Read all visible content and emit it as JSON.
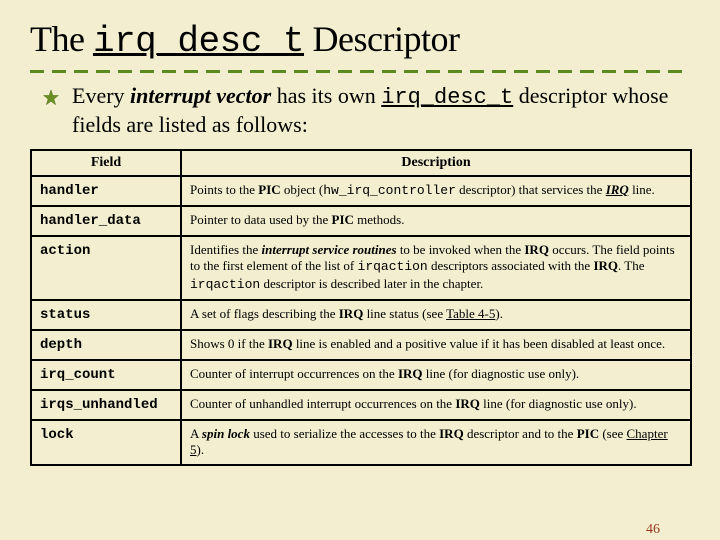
{
  "title_prefix": "The ",
  "title_code": "irq_desc_t",
  "title_suffix": " Descriptor",
  "intro_html": "Every <b><i>interrupt vector</i></b> has its own <span class=\"mono\">irq_desc_t</span> descriptor whose fields are listed as follows:",
  "columns": [
    "Field",
    "Description"
  ],
  "rows": [
    {
      "field": "handler",
      "desc": "Points to the <b>PIC</b> object (<span class=\"mono\">hw_irq_controller</span> descriptor) that services the <b><i class=\"ul\">IRQ</i></b> line."
    },
    {
      "field": "handler_data",
      "desc": "Pointer to data used by the <b>PIC</b> methods."
    },
    {
      "field": "action",
      "desc": "Identifies the <b><i>interrupt service routines</i></b> to be invoked when the <b>IRQ</b> occurs. The field points to the first element of the list of <span class=\"mono\">irqaction</span> descriptors associated with the <b>IRQ</b>. The <span class=\"mono\">irqaction</span> descriptor is described later in the chapter."
    },
    {
      "field": "status",
      "desc": "A set of flags describing the <b>IRQ</b> line status (see <span class=\"ul\">Table 4-5</span>)."
    },
    {
      "field": "depth",
      "desc": "Shows 0 if the <b>IRQ</b> line is enabled and a positive value if it has been disabled at least once."
    },
    {
      "field": "irq_count",
      "desc": "Counter of interrupt occurrences on the <b>IRQ</b> line (for diagnostic use only)."
    },
    {
      "field": "irqs_unhandled",
      "desc": "Counter of unhandled interrupt occurrences on the <b>IRQ</b> line (for diagnostic use only)."
    },
    {
      "field": "lock",
      "desc": "A <b><i>spin lock</i></b> used to serialize the accesses to the <b>IRQ</b> descriptor and to the <b>PIC</b> (see <span class=\"ul\">Chapter 5</span>)."
    }
  ],
  "page_number": "46",
  "colors": {
    "background": "#f2eecf",
    "divider": "#5a8a1f",
    "bullet_star": "#6b8e23",
    "page_num": "#9a3a20",
    "table_border": "#000000"
  }
}
